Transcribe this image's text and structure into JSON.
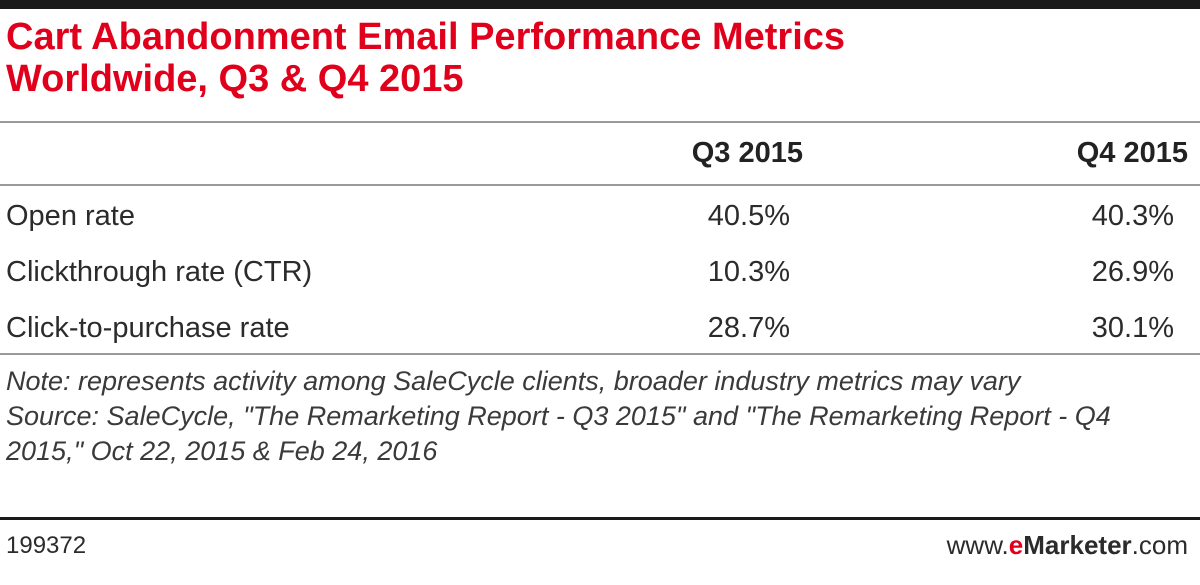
{
  "title": {
    "line1": "Cart Abandonment Email Performance Metrics",
    "line2": "Worldwide, Q3 & Q4 2015"
  },
  "chart_data": {
    "type": "table",
    "columns": [
      "Q3 2015",
      "Q4 2015"
    ],
    "rows": [
      {
        "label": "Open rate",
        "values": [
          "40.5%",
          "40.3%"
        ]
      },
      {
        "label": "Clickthrough rate (CTR)",
        "values": [
          "10.3%",
          "26.9%"
        ]
      },
      {
        "label": "Click-to-purchase rate",
        "values": [
          "28.7%",
          "30.1%"
        ]
      }
    ],
    "series": [
      {
        "name": "Q3 2015",
        "values": [
          40.5,
          10.3,
          28.7
        ]
      },
      {
        "name": "Q4 2015",
        "values": [
          40.3,
          26.9,
          30.1
        ]
      }
    ],
    "categories": [
      "Open rate",
      "Clickthrough rate (CTR)",
      "Click-to-purchase rate"
    ]
  },
  "notes": {
    "note": "Note: represents activity among SaleCycle clients, broader industry metrics may vary",
    "source": "Source: SaleCycle, \"The Remarketing Report - Q3 2015\" and \"The Remarketing Report - Q4 2015,\" Oct 22, 2015 & Feb 24, 2016"
  },
  "footer": {
    "chart_id": "199372",
    "brand_prefix": "www.",
    "brand_e": "e",
    "brand_marketer": "Marketer",
    "brand_suffix": ".com"
  },
  "colors": {
    "title": "#e0001b",
    "text": "#2b2b2b",
    "rule": "#9a9a9a",
    "accent_bar": "#1a1a1a"
  }
}
